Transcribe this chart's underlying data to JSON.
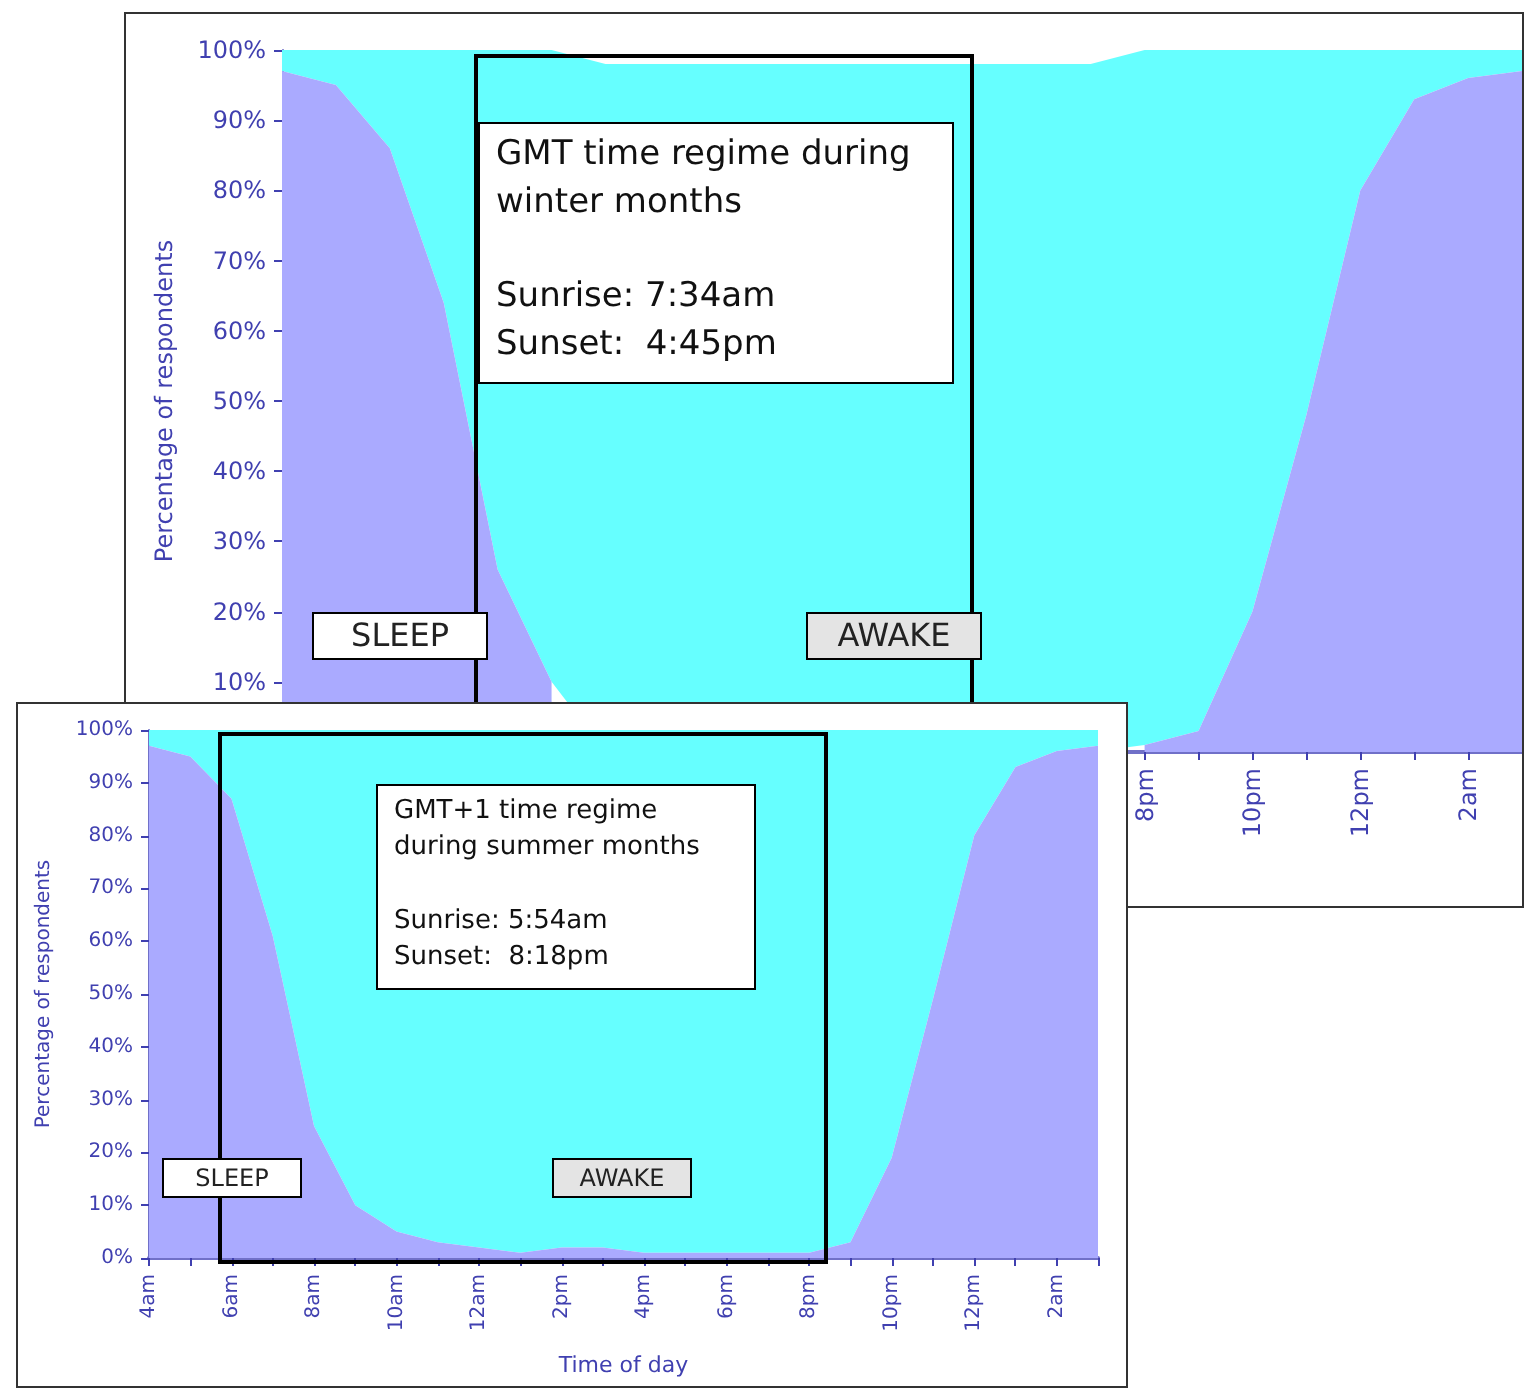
{
  "chart_data": [
    {
      "type": "area",
      "stacked": true,
      "ylabel": "Percentage of respondents",
      "categories": [
        null,
        null,
        null,
        null,
        null,
        null,
        null,
        null,
        null,
        null,
        null,
        null,
        null,
        null,
        null,
        null,
        "8pm",
        null,
        "10pm",
        null,
        "12pm",
        null,
        "2am",
        null
      ],
      "ylim": [
        0,
        100
      ],
      "yticks": [
        {
          "value": 10,
          "label": "10%"
        },
        {
          "value": 20,
          "label": "20%"
        },
        {
          "value": 30,
          "label": "30%"
        },
        {
          "value": 40,
          "label": "40%"
        },
        {
          "value": 50,
          "label": "50%"
        },
        {
          "value": 60,
          "label": "60%"
        },
        {
          "value": 70,
          "label": "70%"
        },
        {
          "value": 80,
          "label": "80%"
        },
        {
          "value": 90,
          "label": "90%"
        },
        {
          "value": 100,
          "label": "100%"
        }
      ],
      "series": [
        {
          "name": "SLEEP",
          "color": "#aaaaff",
          "values": [
            97,
            95,
            86,
            64,
            26,
            10,
            null,
            null,
            null,
            null,
            null,
            null,
            null,
            null,
            null,
            null,
            1,
            3,
            20,
            48,
            80,
            93,
            96,
            97
          ]
        },
        {
          "name": "AWAKE",
          "color": "#66ffff",
          "values": [
            3,
            5,
            14,
            36,
            74,
            90,
            98,
            98,
            98,
            98,
            98,
            98,
            98,
            98,
            98,
            98,
            99,
            97,
            80,
            52,
            20,
            7,
            4,
            3
          ]
        }
      ],
      "annotations": [
        "GMT time regime during winter months",
        "Sunrise: 7:34am",
        "Sunset:  4:45pm"
      ],
      "legend": false,
      "grid": false
    },
    {
      "type": "area",
      "stacked": true,
      "xlabel": "Time of day",
      "ylabel": "Percentage of respondents",
      "categories": [
        "4am",
        null,
        "6am",
        null,
        "8am",
        null,
        "10am",
        null,
        "12am",
        null,
        "2pm",
        null,
        "4pm",
        null,
        "6pm",
        null,
        "8pm",
        null,
        "10pm",
        null,
        "12pm",
        null,
        "2am",
        null
      ],
      "ylim": [
        0,
        100
      ],
      "yticks": [
        {
          "value": 0,
          "label": "0%"
        },
        {
          "value": 10,
          "label": "10%"
        },
        {
          "value": 20,
          "label": "20%"
        },
        {
          "value": 30,
          "label": "30%"
        },
        {
          "value": 40,
          "label": "40%"
        },
        {
          "value": 50,
          "label": "50%"
        },
        {
          "value": 60,
          "label": "60%"
        },
        {
          "value": 70,
          "label": "70%"
        },
        {
          "value": 80,
          "label": "80%"
        },
        {
          "value": 90,
          "label": "90%"
        },
        {
          "value": 100,
          "label": "100%"
        }
      ],
      "series": [
        {
          "name": "SLEEP",
          "color": "#aaaaff",
          "values": [
            97,
            95,
            87,
            61,
            25,
            10,
            5,
            3,
            2,
            1,
            2,
            2,
            1,
            1,
            1,
            1,
            1,
            3,
            19,
            49,
            80,
            93,
            96,
            97
          ]
        },
        {
          "name": "AWAKE",
          "color": "#66ffff",
          "values": [
            3,
            5,
            13,
            39,
            75,
            90,
            95,
            97,
            98,
            99,
            98,
            98,
            99,
            99,
            99,
            99,
            99,
            97,
            81,
            51,
            20,
            7,
            4,
            3
          ]
        }
      ],
      "annotations": [
        "GMT+1 time regime during summer months",
        "Sunrise: 5:54am",
        "Sunset:  8:18pm"
      ],
      "legend": false,
      "grid": false
    }
  ]
}
